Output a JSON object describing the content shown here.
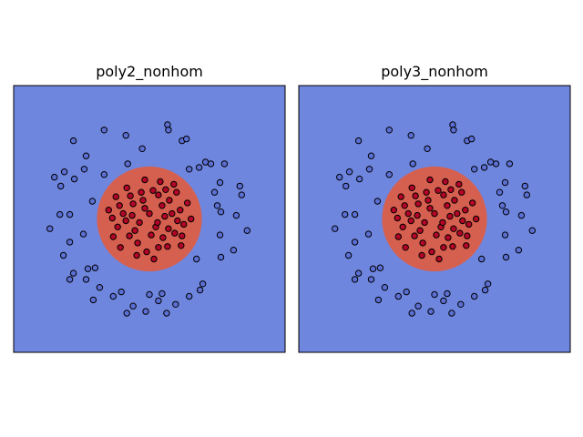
{
  "figure": {
    "colors": {
      "background_region": "#6f86de",
      "inner_region": "#d6604f",
      "outer_points": "#5b6fd4",
      "inner_points": "#b40426",
      "point_edge": "#000000",
      "frame": "#000000"
    }
  },
  "chart_data": [
    {
      "type": "scatter",
      "title": "poly2_nonhom",
      "xlim": [
        -1.5,
        1.5
      ],
      "ylim": [
        -1.5,
        1.5
      ],
      "grid": false,
      "legend": "none",
      "decision_region": {
        "shape": "circle",
        "center": [
          0.0,
          0.0
        ],
        "radius": 0.58
      },
      "series": [
        {
          "class": "outer",
          "points": [
            [
              -0.5,
              1.0
            ],
            [
              -0.26,
              0.94
            ],
            [
              -0.08,
              0.79
            ],
            [
              0.2,
              1.06
            ],
            [
              0.21,
              1.0
            ],
            [
              0.36,
              0.88
            ],
            [
              0.41,
              0.9
            ],
            [
              0.55,
              0.58
            ],
            [
              0.68,
              0.62
            ],
            [
              0.83,
              0.62
            ],
            [
              1.02,
              0.27
            ],
            [
              1.0,
              0.37
            ],
            [
              0.78,
              0.41
            ],
            [
              0.72,
              0.3
            ],
            [
              0.75,
              0.15
            ],
            [
              0.96,
              0.04
            ],
            [
              0.78,
              -0.18
            ],
            [
              1.08,
              -0.13
            ],
            [
              0.93,
              -0.35
            ],
            [
              0.79,
              -0.43
            ],
            [
              0.59,
              -0.73
            ],
            [
              0.56,
              -0.8
            ],
            [
              0.44,
              -0.87
            ],
            [
              0.29,
              -0.96
            ],
            [
              0.19,
              -1.06
            ],
            [
              0.0,
              -0.85
            ],
            [
              -0.04,
              -1.04
            ],
            [
              -0.18,
              -0.98
            ],
            [
              -0.25,
              -1.06
            ],
            [
              -0.4,
              -0.87
            ],
            [
              -0.55,
              -0.77
            ],
            [
              -0.62,
              -0.91
            ],
            [
              -0.7,
              -0.68
            ],
            [
              -0.68,
              -0.56
            ],
            [
              -0.84,
              -0.61
            ],
            [
              -0.88,
              -0.68
            ],
            [
              -0.95,
              -0.41
            ],
            [
              -0.88,
              -0.26
            ],
            [
              -1.1,
              -0.11
            ],
            [
              -0.99,
              0.05
            ],
            [
              -0.98,
              0.37
            ],
            [
              -0.94,
              0.53
            ],
            [
              -1.05,
              0.47
            ],
            [
              -0.83,
              0.45
            ],
            [
              -0.72,
              0.56
            ],
            [
              -0.7,
              0.71
            ],
            [
              -0.84,
              0.88
            ],
            [
              -0.63,
              0.2
            ],
            [
              -0.73,
              -0.17
            ],
            [
              -0.6,
              -0.55
            ],
            [
              -0.31,
              -0.82
            ],
            [
              0.14,
              -0.84
            ],
            [
              0.52,
              -0.45
            ],
            [
              0.79,
              0.08
            ],
            [
              0.62,
              0.64
            ],
            [
              0.44,
              0.56
            ],
            [
              -0.24,
              0.62
            ],
            [
              -0.5,
              0.5
            ],
            [
              0.1,
              -0.92
            ],
            [
              -0.88,
              0.05
            ]
          ]
        },
        {
          "class": "inner",
          "points": [
            [
              -0.37,
              0.25
            ],
            [
              -0.18,
              0.17
            ],
            [
              -0.07,
              0.21
            ],
            [
              0.04,
              0.32
            ],
            [
              0.1,
              0.27
            ],
            [
              0.22,
              0.21
            ],
            [
              0.25,
              0.06
            ],
            [
              0.34,
              0.1
            ],
            [
              0.38,
              -0.06
            ],
            [
              0.28,
              -0.16
            ],
            [
              0.15,
              -0.21
            ],
            [
              0.1,
              -0.32
            ],
            [
              -0.03,
              -0.37
            ],
            [
              -0.13,
              -0.27
            ],
            [
              -0.22,
              -0.19
            ],
            [
              -0.35,
              -0.09
            ],
            [
              -0.41,
              0.01
            ],
            [
              -0.29,
              0.06
            ],
            [
              -0.11,
              -0.04
            ],
            [
              0.0,
              0.06
            ],
            [
              0.07,
              -0.09
            ],
            [
              0.17,
              0.03
            ],
            [
              -0.05,
              0.12
            ],
            [
              0.2,
              -0.31
            ],
            [
              -0.25,
              0.35
            ],
            [
              0.3,
              0.3
            ],
            [
              -0.4,
              -0.2
            ],
            [
              0.12,
              0.42
            ],
            [
              -0.14,
              -0.41
            ],
            [
              0.35,
              -0.3
            ],
            [
              0.42,
              0.18
            ],
            [
              -0.32,
              -0.32
            ],
            [
              0.05,
              -0.45
            ],
            [
              -0.05,
              0.44
            ],
            [
              0.27,
              0.39
            ],
            [
              -0.19,
              0.04
            ],
            [
              0.02,
              -0.18
            ],
            [
              0.31,
              -0.02
            ],
            [
              -0.26,
              -0.02
            ],
            [
              0.14,
              0.15
            ],
            [
              -0.09,
              0.3
            ],
            [
              0.21,
              -0.11
            ],
            [
              -0.33,
              0.15
            ],
            [
              0.46,
              0.0
            ],
            [
              -0.45,
              0.1
            ],
            [
              -0.21,
              0.26
            ],
            [
              0.18,
              0.33
            ],
            [
              0.09,
              -0.04
            ],
            [
              -0.16,
              -0.13
            ],
            [
              0.36,
              -0.19
            ]
          ]
        }
      ]
    },
    {
      "type": "scatter",
      "title": "poly3_nonhom",
      "xlim": [
        -1.5,
        1.5
      ],
      "ylim": [
        -1.5,
        1.5
      ],
      "grid": false,
      "legend": "none",
      "decision_region": {
        "shape": "circle",
        "center": [
          0.0,
          0.0
        ],
        "radius": 0.58
      },
      "series": [
        {
          "class": "outer",
          "points": [
            [
              -0.5,
              1.0
            ],
            [
              -0.26,
              0.94
            ],
            [
              -0.08,
              0.79
            ],
            [
              0.2,
              1.06
            ],
            [
              0.21,
              1.0
            ],
            [
              0.36,
              0.88
            ],
            [
              0.41,
              0.9
            ],
            [
              0.55,
              0.58
            ],
            [
              0.68,
              0.62
            ],
            [
              0.83,
              0.62
            ],
            [
              1.02,
              0.27
            ],
            [
              1.0,
              0.37
            ],
            [
              0.78,
              0.41
            ],
            [
              0.72,
              0.3
            ],
            [
              0.75,
              0.15
            ],
            [
              0.96,
              0.04
            ],
            [
              0.78,
              -0.18
            ],
            [
              1.08,
              -0.13
            ],
            [
              0.93,
              -0.35
            ],
            [
              0.79,
              -0.43
            ],
            [
              0.59,
              -0.73
            ],
            [
              0.56,
              -0.8
            ],
            [
              0.44,
              -0.87
            ],
            [
              0.29,
              -0.96
            ],
            [
              0.19,
              -1.06
            ],
            [
              0.0,
              -0.85
            ],
            [
              -0.04,
              -1.04
            ],
            [
              -0.18,
              -0.98
            ],
            [
              -0.25,
              -1.06
            ],
            [
              -0.4,
              -0.87
            ],
            [
              -0.55,
              -0.77
            ],
            [
              -0.62,
              -0.91
            ],
            [
              -0.7,
              -0.68
            ],
            [
              -0.68,
              -0.56
            ],
            [
              -0.84,
              -0.61
            ],
            [
              -0.88,
              -0.68
            ],
            [
              -0.95,
              -0.41
            ],
            [
              -0.88,
              -0.26
            ],
            [
              -1.1,
              -0.11
            ],
            [
              -0.99,
              0.05
            ],
            [
              -0.98,
              0.37
            ],
            [
              -0.94,
              0.53
            ],
            [
              -1.05,
              0.47
            ],
            [
              -0.83,
              0.45
            ],
            [
              -0.72,
              0.56
            ],
            [
              -0.7,
              0.71
            ],
            [
              -0.84,
              0.88
            ],
            [
              -0.63,
              0.2
            ],
            [
              -0.73,
              -0.17
            ],
            [
              -0.6,
              -0.55
            ],
            [
              -0.31,
              -0.82
            ],
            [
              0.14,
              -0.84
            ],
            [
              0.52,
              -0.45
            ],
            [
              0.79,
              0.08
            ],
            [
              0.62,
              0.64
            ],
            [
              0.44,
              0.56
            ],
            [
              -0.24,
              0.62
            ],
            [
              -0.5,
              0.5
            ],
            [
              0.1,
              -0.92
            ],
            [
              -0.88,
              0.05
            ]
          ]
        },
        {
          "class": "inner",
          "points": [
            [
              -0.37,
              0.25
            ],
            [
              -0.18,
              0.17
            ],
            [
              -0.07,
              0.21
            ],
            [
              0.04,
              0.32
            ],
            [
              0.1,
              0.27
            ],
            [
              0.22,
              0.21
            ],
            [
              0.25,
              0.06
            ],
            [
              0.34,
              0.1
            ],
            [
              0.38,
              -0.06
            ],
            [
              0.28,
              -0.16
            ],
            [
              0.15,
              -0.21
            ],
            [
              0.1,
              -0.32
            ],
            [
              -0.03,
              -0.37
            ],
            [
              -0.13,
              -0.27
            ],
            [
              -0.22,
              -0.19
            ],
            [
              -0.35,
              -0.09
            ],
            [
              -0.41,
              0.01
            ],
            [
              -0.29,
              0.06
            ],
            [
              -0.11,
              -0.04
            ],
            [
              0.0,
              0.06
            ],
            [
              0.07,
              -0.09
            ],
            [
              0.17,
              0.03
            ],
            [
              -0.05,
              0.12
            ],
            [
              0.2,
              -0.31
            ],
            [
              -0.25,
              0.35
            ],
            [
              0.3,
              0.3
            ],
            [
              -0.4,
              -0.2
            ],
            [
              0.12,
              0.42
            ],
            [
              -0.14,
              -0.41
            ],
            [
              0.35,
              -0.3
            ],
            [
              0.42,
              0.18
            ],
            [
              -0.32,
              -0.32
            ],
            [
              0.05,
              -0.45
            ],
            [
              -0.05,
              0.44
            ],
            [
              0.27,
              0.39
            ],
            [
              -0.19,
              0.04
            ],
            [
              0.02,
              -0.18
            ],
            [
              0.31,
              -0.02
            ],
            [
              -0.26,
              -0.02
            ],
            [
              0.14,
              0.15
            ],
            [
              -0.09,
              0.3
            ],
            [
              0.21,
              -0.11
            ],
            [
              -0.33,
              0.15
            ],
            [
              0.46,
              0.0
            ],
            [
              -0.45,
              0.1
            ],
            [
              -0.21,
              0.26
            ],
            [
              0.18,
              0.33
            ],
            [
              0.09,
              -0.04
            ],
            [
              -0.16,
              -0.13
            ],
            [
              0.36,
              -0.19
            ]
          ]
        }
      ]
    }
  ]
}
